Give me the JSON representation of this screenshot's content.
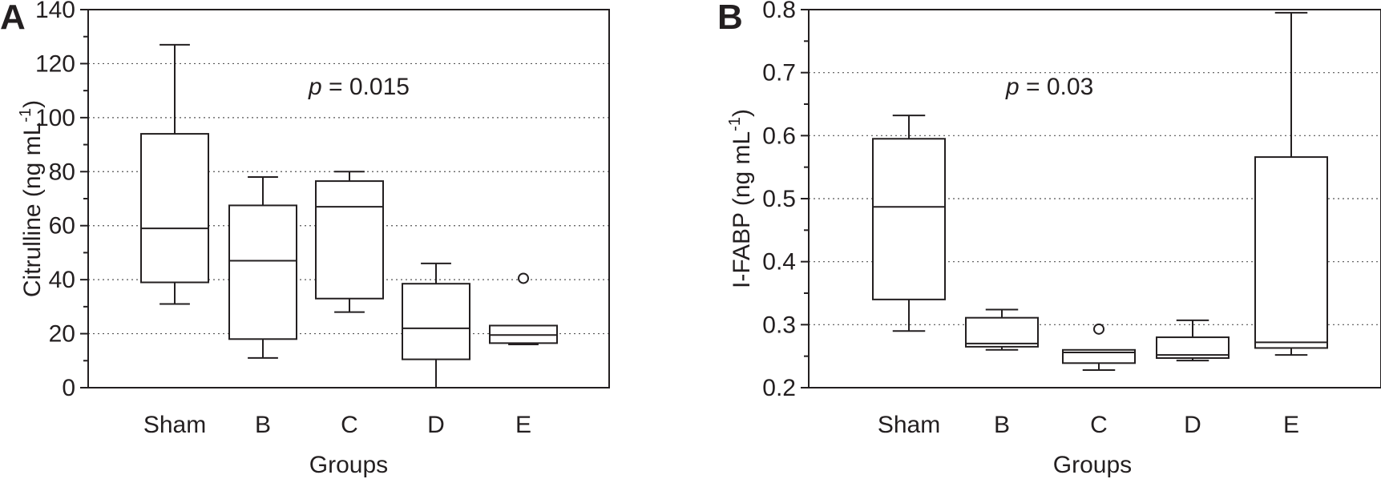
{
  "chart_data": [
    {
      "panel": "A",
      "type": "box",
      "title": "",
      "xlabel": "Groups",
      "ylabel": "Citrulline (ng mL",
      "ylabel_sup": "-1",
      "ylabel_close": ")",
      "ylim": [
        0,
        140
      ],
      "yticks": [
        0,
        20,
        40,
        60,
        80,
        100,
        120,
        140
      ],
      "ytick_labels": [
        "0",
        "20",
        "40",
        "60",
        "80",
        "100",
        "120",
        "140"
      ],
      "grid": "horizontal dotted at major ticks",
      "annotation": {
        "italic": "p",
        "rest": " = 0.015"
      },
      "categories": [
        "Sham",
        "B",
        "C",
        "D",
        "E"
      ],
      "boxes": [
        {
          "category": "Sham",
          "min": 31,
          "q1": 39,
          "median": 59,
          "q3": 94,
          "max": 127,
          "outliers": []
        },
        {
          "category": "B",
          "min": 11,
          "q1": 18,
          "median": 47,
          "q3": 67.5,
          "max": 78,
          "outliers": []
        },
        {
          "category": "C",
          "min": 28,
          "q1": 33,
          "median": 67,
          "q3": 76.5,
          "max": 80,
          "outliers": []
        },
        {
          "category": "D",
          "min": 0,
          "q1": 10.5,
          "median": 22,
          "q3": 38.5,
          "max": 46,
          "outliers": []
        },
        {
          "category": "E",
          "min": 16,
          "q1": 16.5,
          "median": 19.5,
          "q3": 23,
          "max": 23,
          "outliers": [
            40.5
          ]
        }
      ]
    },
    {
      "panel": "B",
      "type": "box",
      "title": "",
      "xlabel": "Groups",
      "ylabel": "I-FABP (ng mL",
      "ylabel_sup": "-1",
      "ylabel_close": ")",
      "ylim": [
        0.2,
        0.8
      ],
      "yticks": [
        0.2,
        0.3,
        0.4,
        0.5,
        0.6,
        0.7,
        0.8
      ],
      "ytick_labels": [
        "0.2",
        "0.3",
        "0.4",
        "0.5",
        "0.6",
        "0.7",
        "0.8"
      ],
      "grid": "horizontal dotted at major ticks",
      "annotation": {
        "italic": "p",
        "rest": " = 0.03"
      },
      "categories": [
        "Sham",
        "B",
        "C",
        "D",
        "E"
      ],
      "boxes": [
        {
          "category": "Sham",
          "min": 0.29,
          "q1": 0.34,
          "median": 0.487,
          "q3": 0.595,
          "max": 0.632,
          "outliers": []
        },
        {
          "category": "B",
          "min": 0.26,
          "q1": 0.265,
          "median": 0.27,
          "q3": 0.311,
          "max": 0.324,
          "outliers": []
        },
        {
          "category": "C",
          "min": 0.228,
          "q1": 0.239,
          "median": 0.256,
          "q3": 0.26,
          "max": 0.26,
          "outliers": [
            0.293
          ]
        },
        {
          "category": "D",
          "min": 0.243,
          "q1": 0.247,
          "median": 0.252,
          "q3": 0.28,
          "max": 0.307,
          "outliers": []
        },
        {
          "category": "E",
          "min": 0.252,
          "q1": 0.263,
          "median": 0.272,
          "q3": 0.566,
          "max": 0.795,
          "outliers": []
        }
      ]
    }
  ]
}
